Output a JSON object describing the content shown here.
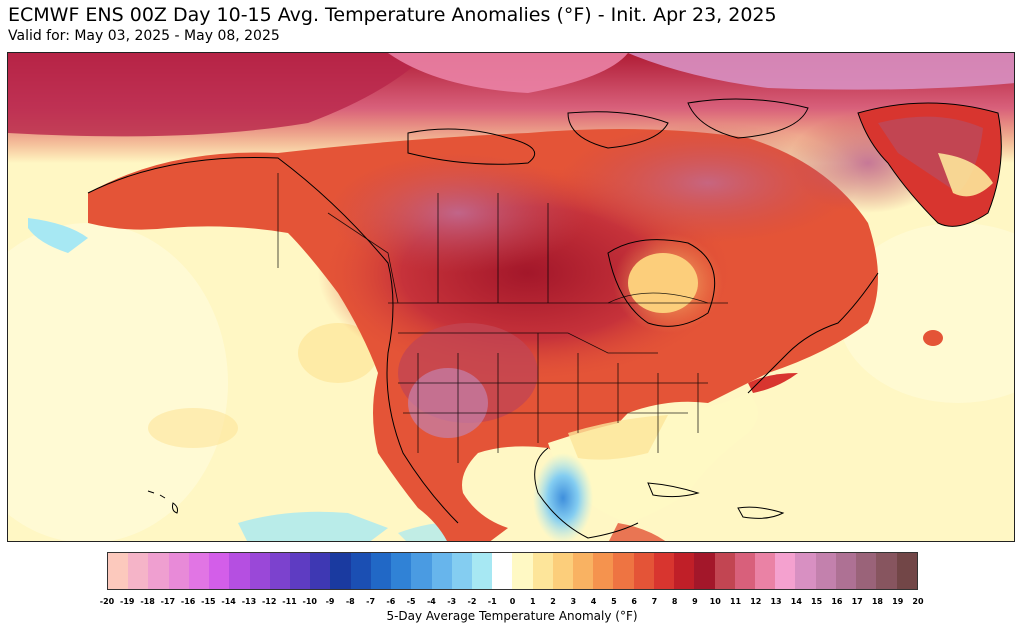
{
  "header": {
    "title": "ECMWF ENS 00Z Day 10-15 Avg. Temperature Anomalies (°F) - Init. Apr 23, 2025",
    "subtitle": "Valid for: May 03, 2025 - May 08, 2025"
  },
  "map": {
    "variable": "5-Day Average Temperature Anomaly (°F)",
    "region": "North America",
    "colors": {
      "ocean_neutral": "#fff7c4",
      "warm_light": "#f9c26a",
      "warm_mid": "#e0452c",
      "warm_strong": "#a3172a",
      "warm_extreme": "#d0679a",
      "cool_light": "#9be7f4",
      "cool_mid": "#3f8fdc",
      "borders": "#000000"
    }
  },
  "colorbar": {
    "label": "5-Day Average Temperature Anomaly (°F)",
    "ticks": [
      "-20",
      "-19",
      "-18",
      "-17",
      "-16",
      "-15",
      "-14",
      "-13",
      "-12",
      "-11",
      "-10",
      "-9",
      "-8",
      "-7",
      "-6",
      "-5",
      "-4",
      "-3",
      "-2",
      "-1",
      "0",
      "1",
      "2",
      "3",
      "4",
      "5",
      "6",
      "7",
      "8",
      "9",
      "10",
      "11",
      "12",
      "13",
      "14",
      "15",
      "16",
      "17",
      "18",
      "19",
      "20"
    ],
    "colors": [
      "#fcc9bd",
      "#f5b4c8",
      "#ef9fd0",
      "#e88ad8",
      "#e175e4",
      "#d35ee9",
      "#b54fe1",
      "#9a48d8",
      "#7c42ce",
      "#5e3cc2",
      "#3e38b3",
      "#1a3aa0",
      "#1b4fb3",
      "#2168c6",
      "#3082d6",
      "#4a9be2",
      "#67b5ec",
      "#84cdf1",
      "#a7e8f3",
      "#ffffff",
      "#fff9c4",
      "#fde59a",
      "#fcce7b",
      "#f9b262",
      "#f5934e",
      "#ee7442",
      "#e45437",
      "#d8352f",
      "#c01f28",
      "#a3172a",
      "#c24552",
      "#d8607b",
      "#ea82a5",
      "#f4a1cf",
      "#d890c2",
      "#c381ad",
      "#ae7194",
      "#9a6379",
      "#87555f",
      "#724647"
    ]
  }
}
